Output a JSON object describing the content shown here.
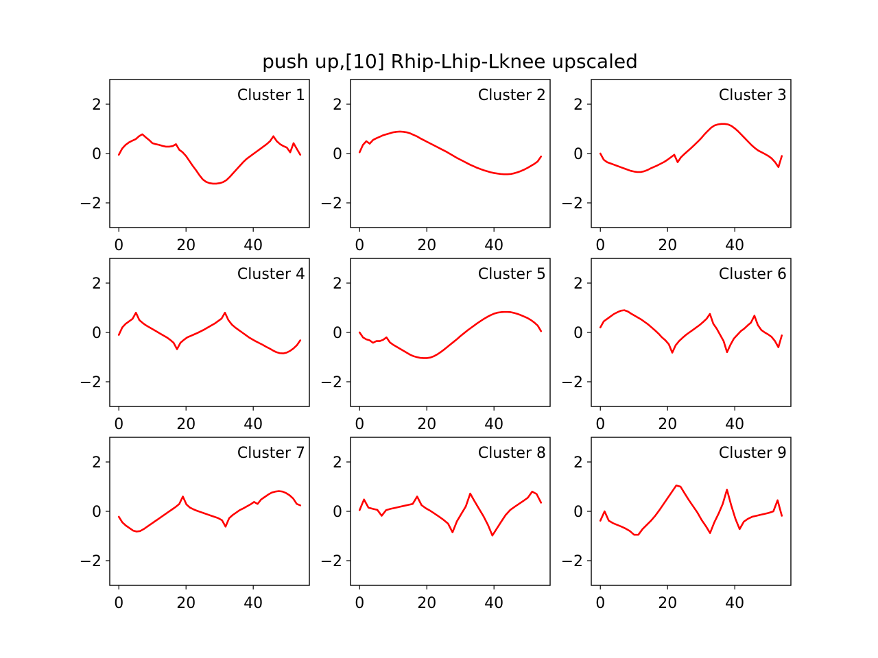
{
  "title": "push up,[10] Rhip-Lhip-Lknee upscaled",
  "chart_data": {
    "type": "line",
    "layout": "3x3 grid of subplots",
    "line_color": "#ff0000",
    "shared": {
      "xlim": [
        -2.7,
        56.7
      ],
      "ylim": [
        -3,
        3
      ],
      "xticks": [
        0,
        20,
        40
      ],
      "yticks": [
        -2,
        0,
        2
      ],
      "ytick_labels": [
        "−2",
        "0",
        "2"
      ],
      "grid": false,
      "label_placement": "top-right inside axes"
    },
    "subplots": [
      {
        "label": "Cluster 1",
        "x_start": 0,
        "x_end": 54,
        "y": [
          -0.05,
          0.2,
          0.35,
          0.45,
          0.52,
          0.58,
          0.7,
          0.78,
          0.66,
          0.55,
          0.42,
          0.38,
          0.35,
          0.31,
          0.28,
          0.28,
          0.3,
          0.38,
          0.15,
          0.05,
          -0.1,
          -0.3,
          -0.5,
          -0.68,
          -0.88,
          -1.05,
          -1.15,
          -1.2,
          -1.22,
          -1.22,
          -1.2,
          -1.16,
          -1.08,
          -0.95,
          -0.8,
          -0.65,
          -0.5,
          -0.35,
          -0.22,
          -0.12,
          -0.02,
          0.08,
          0.18,
          0.28,
          0.38,
          0.5,
          0.7,
          0.5,
          0.38,
          0.3,
          0.24,
          0.05,
          0.42,
          0.18,
          -0.05
        ]
      },
      {
        "label": "Cluster 2",
        "x_start": 0,
        "x_end": 54,
        "y": [
          0.05,
          0.35,
          0.5,
          0.4,
          0.55,
          0.62,
          0.68,
          0.74,
          0.78,
          0.82,
          0.86,
          0.88,
          0.89,
          0.88,
          0.86,
          0.82,
          0.76,
          0.7,
          0.62,
          0.55,
          0.48,
          0.41,
          0.34,
          0.27,
          0.2,
          0.13,
          0.06,
          -0.02,
          -0.1,
          -0.18,
          -0.25,
          -0.32,
          -0.39,
          -0.46,
          -0.52,
          -0.58,
          -0.63,
          -0.68,
          -0.72,
          -0.76,
          -0.79,
          -0.81,
          -0.83,
          -0.84,
          -0.84,
          -0.83,
          -0.8,
          -0.76,
          -0.71,
          -0.65,
          -0.58,
          -0.5,
          -0.42,
          -0.32,
          -0.12
        ]
      },
      {
        "label": "Cluster 3",
        "x_start": 0,
        "x_end": 54,
        "y": [
          0.0,
          -0.25,
          -0.35,
          -0.4,
          -0.45,
          -0.5,
          -0.55,
          -0.6,
          -0.65,
          -0.7,
          -0.73,
          -0.75,
          -0.75,
          -0.72,
          -0.67,
          -0.6,
          -0.54,
          -0.48,
          -0.41,
          -0.34,
          -0.25,
          -0.15,
          -0.05,
          -0.35,
          -0.15,
          -0.02,
          0.1,
          0.22,
          0.35,
          0.48,
          0.62,
          0.78,
          0.92,
          1.05,
          1.14,
          1.18,
          1.2,
          1.2,
          1.18,
          1.12,
          1.02,
          0.9,
          0.76,
          0.62,
          0.48,
          0.34,
          0.22,
          0.12,
          0.05,
          -0.02,
          -0.1,
          -0.2,
          -0.35,
          -0.55,
          -0.1
        ]
      },
      {
        "label": "Cluster 4",
        "x_start": 0,
        "x_end": 54,
        "y": [
          -0.1,
          0.2,
          0.35,
          0.45,
          0.55,
          0.8,
          0.5,
          0.38,
          0.28,
          0.2,
          0.12,
          0.04,
          -0.04,
          -0.12,
          -0.2,
          -0.3,
          -0.42,
          -0.68,
          -0.42,
          -0.3,
          -0.2,
          -0.14,
          -0.08,
          -0.02,
          0.05,
          0.12,
          0.2,
          0.28,
          0.36,
          0.46,
          0.56,
          0.8,
          0.5,
          0.32,
          0.2,
          0.1,
          0.0,
          -0.1,
          -0.2,
          -0.28,
          -0.36,
          -0.43,
          -0.5,
          -0.58,
          -0.65,
          -0.73,
          -0.8,
          -0.84,
          -0.85,
          -0.82,
          -0.75,
          -0.65,
          -0.52,
          -0.32
        ]
      },
      {
        "label": "Cluster 5",
        "x_start": 0,
        "x_end": 54,
        "y": [
          0.0,
          -0.2,
          -0.28,
          -0.32,
          -0.42,
          -0.35,
          -0.35,
          -0.3,
          -0.2,
          -0.4,
          -0.5,
          -0.58,
          -0.66,
          -0.74,
          -0.82,
          -0.9,
          -0.96,
          -1.0,
          -1.03,
          -1.04,
          -1.04,
          -1.02,
          -0.97,
          -0.9,
          -0.81,
          -0.71,
          -0.6,
          -0.49,
          -0.38,
          -0.27,
          -0.15,
          -0.04,
          0.07,
          0.17,
          0.27,
          0.37,
          0.46,
          0.55,
          0.63,
          0.7,
          0.76,
          0.8,
          0.82,
          0.83,
          0.83,
          0.82,
          0.79,
          0.75,
          0.7,
          0.64,
          0.58,
          0.5,
          0.4,
          0.28,
          0.05
        ]
      },
      {
        "label": "Cluster 6",
        "x_start": 0,
        "x_end": 54,
        "y": [
          0.2,
          0.45,
          0.55,
          0.65,
          0.75,
          0.82,
          0.88,
          0.9,
          0.85,
          0.76,
          0.68,
          0.6,
          0.52,
          0.42,
          0.32,
          0.2,
          0.08,
          -0.05,
          -0.2,
          -0.32,
          -0.48,
          -0.82,
          -0.52,
          -0.35,
          -0.22,
          -0.1,
          0.0,
          0.1,
          0.2,
          0.3,
          0.42,
          0.55,
          0.75,
          0.35,
          0.15,
          -0.1,
          -0.35,
          -0.8,
          -0.5,
          -0.25,
          -0.1,
          0.05,
          0.15,
          0.28,
          0.4,
          0.68,
          0.3,
          0.1,
          0.0,
          -0.08,
          -0.18,
          -0.35,
          -0.6,
          -0.12
        ]
      },
      {
        "label": "Cluster 7",
        "x_start": 0,
        "x_end": 54,
        "y": [
          -0.22,
          -0.45,
          -0.58,
          -0.68,
          -0.78,
          -0.82,
          -0.8,
          -0.72,
          -0.62,
          -0.52,
          -0.42,
          -0.32,
          -0.22,
          -0.12,
          -0.02,
          0.08,
          0.18,
          0.3,
          0.6,
          0.28,
          0.15,
          0.08,
          0.02,
          -0.03,
          -0.08,
          -0.13,
          -0.18,
          -0.23,
          -0.28,
          -0.36,
          -0.62,
          -0.28,
          -0.15,
          -0.05,
          0.05,
          0.12,
          0.2,
          0.28,
          0.38,
          0.3,
          0.48,
          0.58,
          0.68,
          0.76,
          0.8,
          0.82,
          0.8,
          0.74,
          0.65,
          0.52,
          0.3,
          0.24
        ]
      },
      {
        "label": "Cluster 8",
        "x_start": 0,
        "x_end": 54,
        "y": [
          0.05,
          0.48,
          0.15,
          0.1,
          0.06,
          -0.18,
          0.05,
          0.1,
          0.14,
          0.18,
          0.22,
          0.26,
          0.3,
          0.6,
          0.25,
          0.12,
          0.02,
          -0.1,
          -0.22,
          -0.35,
          -0.5,
          -0.85,
          -0.4,
          -0.1,
          0.2,
          0.72,
          0.4,
          0.1,
          -0.2,
          -0.55,
          -0.98,
          -0.7,
          -0.42,
          -0.15,
          0.05,
          0.18,
          0.3,
          0.42,
          0.55,
          0.8,
          0.7,
          0.35
        ]
      },
      {
        "label": "Cluster 9",
        "x_start": 0,
        "x_end": 54,
        "y": [
          -0.38,
          0.0,
          -0.38,
          -0.48,
          -0.55,
          -0.62,
          -0.7,
          -0.8,
          -0.95,
          -0.95,
          -0.72,
          -0.55,
          -0.38,
          -0.18,
          0.05,
          0.3,
          0.55,
          0.8,
          1.05,
          1.0,
          0.72,
          0.45,
          0.2,
          -0.05,
          -0.35,
          -0.6,
          -0.88,
          -0.45,
          -0.1,
          0.3,
          0.88,
          0.25,
          -0.3,
          -0.72,
          -0.42,
          -0.3,
          -0.22,
          -0.18,
          -0.14,
          -0.1,
          -0.06,
          0.0,
          0.45,
          -0.18
        ]
      }
    ]
  }
}
